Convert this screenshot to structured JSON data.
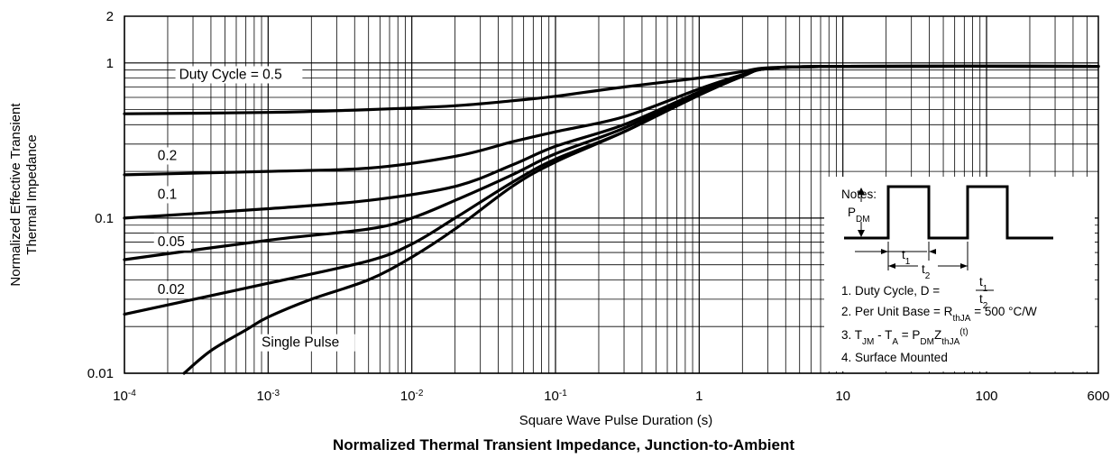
{
  "chart_data": {
    "type": "line",
    "title": "Normalized Thermal Transient Impedance, Junction-to-Ambient",
    "xlabel": "Square Wave Pulse Duration (s)",
    "ylabel_line1": "Normalized Effective Transient",
    "ylabel_line2": "Thermal Impedance",
    "x_scale": "log",
    "y_scale": "log",
    "xlim": [
      0.0001,
      600
    ],
    "ylim": [
      0.01,
      2
    ],
    "grid": true,
    "x_ticks": [
      {
        "value": 0.0001,
        "base": "10",
        "exp": "-4"
      },
      {
        "value": 0.001,
        "base": "10",
        "exp": "-3"
      },
      {
        "value": 0.01,
        "base": "10",
        "exp": "-2"
      },
      {
        "value": 0.1,
        "base": "10",
        "exp": "-1"
      },
      {
        "value": 1,
        "base": "1",
        "exp": ""
      },
      {
        "value": 10,
        "base": "10",
        "exp": ""
      },
      {
        "value": 100,
        "base": "100",
        "exp": ""
      },
      {
        "value": 600,
        "base": "600",
        "exp": ""
      }
    ],
    "y_ticks": [
      {
        "value": 0.01,
        "label": "0.01"
      },
      {
        "value": 0.1,
        "label": "0.1"
      },
      {
        "value": 1,
        "label": "1"
      },
      {
        "value": 2,
        "label": "2"
      }
    ],
    "series": [
      {
        "name": "Duty Cycle = 0.5",
        "label_pos": [
          0.00024,
          0.8
        ],
        "x": [
          0.0001,
          0.001,
          0.005,
          0.02,
          0.05,
          0.1,
          0.3,
          1,
          2,
          3,
          10,
          600
        ],
        "y": [
          0.47,
          0.48,
          0.5,
          0.53,
          0.57,
          0.61,
          0.7,
          0.8,
          0.88,
          0.93,
          0.95,
          0.95
        ]
      },
      {
        "name": "0.2",
        "label_pos": [
          0.00017,
          0.24
        ],
        "x": [
          0.0001,
          0.001,
          0.005,
          0.02,
          0.05,
          0.1,
          0.3,
          1,
          2,
          3,
          10,
          600
        ],
        "y": [
          0.19,
          0.2,
          0.21,
          0.25,
          0.31,
          0.36,
          0.45,
          0.68,
          0.84,
          0.92,
          0.95,
          0.95
        ]
      },
      {
        "name": "0.1",
        "label_pos": [
          0.00017,
          0.135
        ],
        "x": [
          0.0001,
          0.001,
          0.005,
          0.02,
          0.05,
          0.1,
          0.3,
          1,
          2,
          3,
          10,
          600
        ],
        "y": [
          0.1,
          0.115,
          0.13,
          0.16,
          0.22,
          0.29,
          0.4,
          0.65,
          0.83,
          0.92,
          0.95,
          0.95
        ]
      },
      {
        "name": "0.05",
        "label_pos": [
          0.00017,
          0.067
        ],
        "x": [
          0.0001,
          0.001,
          0.005,
          0.01,
          0.02,
          0.05,
          0.1,
          0.3,
          1,
          2,
          3,
          10,
          600
        ],
        "y": [
          0.054,
          0.072,
          0.085,
          0.1,
          0.13,
          0.19,
          0.26,
          0.38,
          0.64,
          0.83,
          0.92,
          0.95,
          0.95
        ]
      },
      {
        "name": "0.02",
        "label_pos": [
          0.00017,
          0.033
        ],
        "x": [
          0.0001,
          0.001,
          0.005,
          0.01,
          0.02,
          0.05,
          0.1,
          0.3,
          1,
          2,
          3,
          10,
          600
        ],
        "y": [
          0.024,
          0.038,
          0.053,
          0.068,
          0.1,
          0.17,
          0.24,
          0.36,
          0.63,
          0.82,
          0.92,
          0.95,
          0.95
        ]
      },
      {
        "name": "Single Pulse",
        "label_pos": [
          0.0009,
          0.015
        ],
        "x": [
          0.00026,
          0.0004,
          0.0007,
          0.001,
          0.002,
          0.005,
          0.01,
          0.02,
          0.05,
          0.1,
          0.3,
          1,
          2,
          3,
          10,
          600
        ],
        "y": [
          0.01,
          0.014,
          0.019,
          0.023,
          0.03,
          0.04,
          0.056,
          0.085,
          0.16,
          0.23,
          0.36,
          0.62,
          0.82,
          0.92,
          0.95,
          0.95
        ]
      }
    ],
    "notes": {
      "heading": "Notes:",
      "pdm": "P",
      "pdm_sub": "DM",
      "t1": "t",
      "t1_sub": "1",
      "t2": "t",
      "t2_sub": "2",
      "note1_prefix": "1. Duty Cycle, D = ",
      "note1_num": "t",
      "note1_num_sub": "1",
      "note1_den": "t",
      "note1_den_sub": "2",
      "note2_prefix": "2. Per Unit Base = R",
      "note2_sub": "thJA",
      "note2_suffix": " = 500 °C/W",
      "note3_a": "3. T",
      "note3_a_sub": "JM",
      "note3_b": " - T",
      "note3_b_sub": "A",
      "note3_c": " = P",
      "note3_c_sub": "DM",
      "note3_d": "Z",
      "note3_d_sub": "thJA",
      "note3_e": "(t)",
      "note4": "4. Surface Mounted"
    }
  }
}
